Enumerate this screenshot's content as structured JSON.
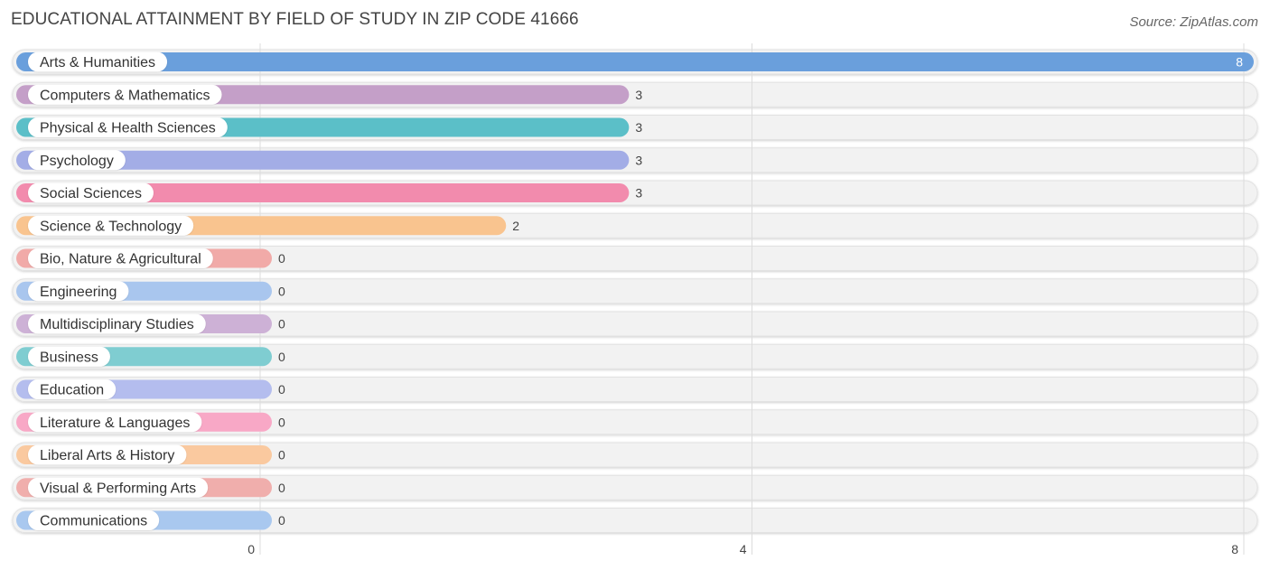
{
  "title": "EDUCATIONAL ATTAINMENT BY FIELD OF STUDY IN ZIP CODE 41666",
  "source": "Source: ZipAtlas.com",
  "chart_data": {
    "type": "bar",
    "orientation": "horizontal",
    "categories": [
      "Arts & Humanities",
      "Computers & Mathematics",
      "Physical & Health Sciences",
      "Psychology",
      "Social Sciences",
      "Science & Technology",
      "Bio, Nature & Agricultural",
      "Engineering",
      "Multidisciplinary Studies",
      "Business",
      "Education",
      "Literature & Languages",
      "Liberal Arts & History",
      "Visual & Performing Arts",
      "Communications"
    ],
    "values": [
      8,
      3,
      3,
      3,
      3,
      2,
      0,
      0,
      0,
      0,
      0,
      0,
      0,
      0,
      0
    ],
    "colors": [
      "#6a9fdc",
      "#c49fc8",
      "#5bbfc8",
      "#a3ade6",
      "#f28bad",
      "#f9c48f",
      "#f1aaa8",
      "#a9c6ee",
      "#cdb1d6",
      "#7fcdd1",
      "#b4bdee",
      "#f8a8c6",
      "#fac99f",
      "#f0aeac",
      "#a9c8ef"
    ],
    "xlim": [
      0,
      8
    ],
    "xticks": [
      0,
      4,
      8
    ],
    "xtick_labels": [
      "0",
      "4",
      "8"
    ],
    "grid": true,
    "xlabel": "",
    "ylabel": ""
  }
}
